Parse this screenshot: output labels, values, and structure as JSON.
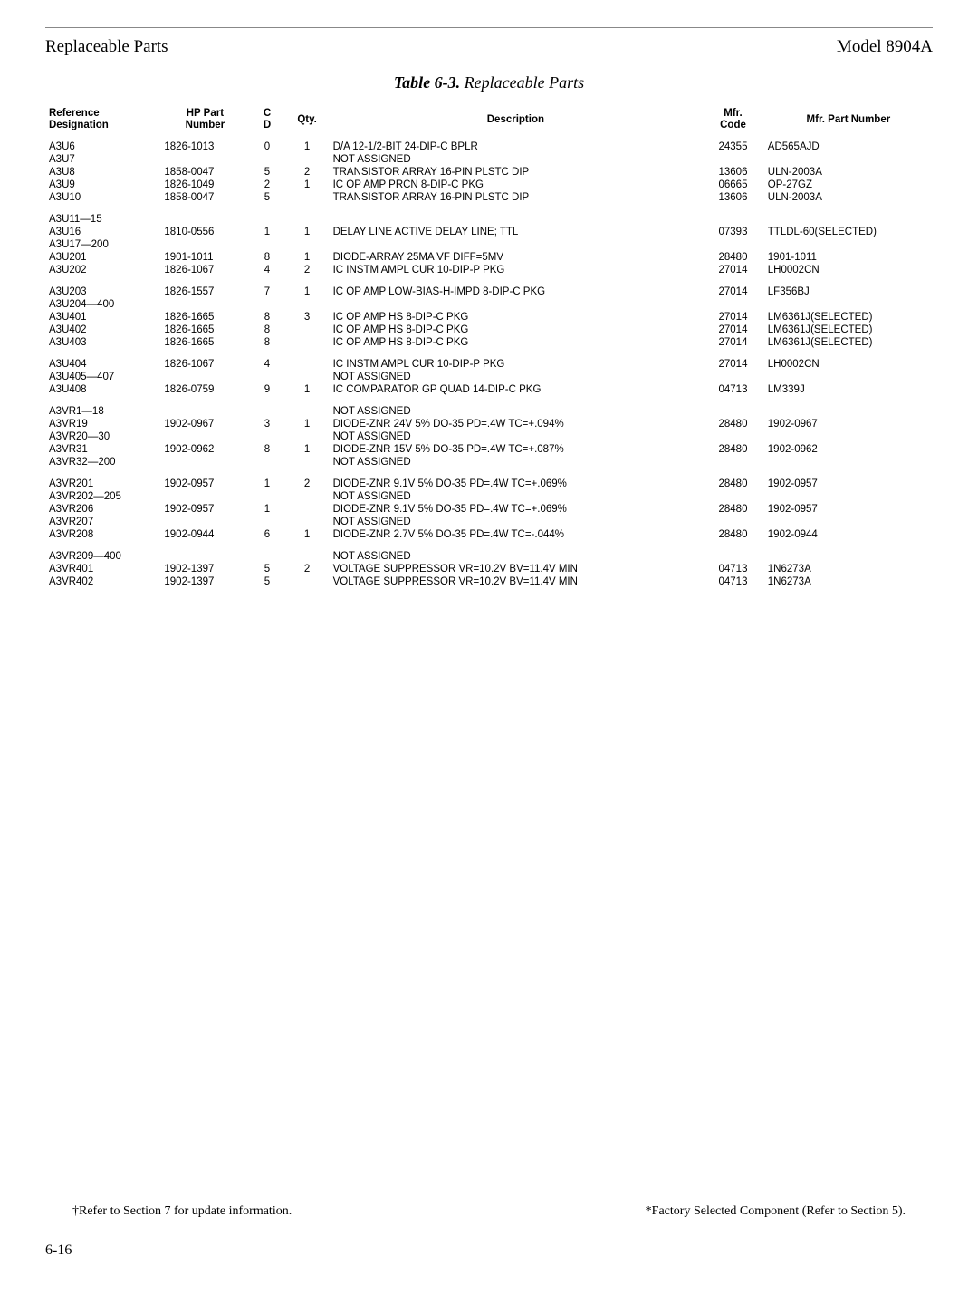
{
  "header": {
    "left": "Replaceable Parts",
    "right": "Model 8904A"
  },
  "caption": {
    "bold": "Table 6-3.",
    "rest": " Replaceable Parts"
  },
  "columns": [
    {
      "key": "ref",
      "label": "Reference\nDesignation",
      "class": "col-ref",
      "hclass": "th-multi",
      "align": "left"
    },
    {
      "key": "hp",
      "label": "HP Part\nNumber",
      "class": "col-hp",
      "hclass": "center th-multi",
      "align": "left"
    },
    {
      "key": "cd",
      "label": "C\nD",
      "class": "col-cd",
      "hclass": "center th-multi",
      "align": "center"
    },
    {
      "key": "qty",
      "label": "Qty.",
      "class": "col-qty",
      "hclass": "center",
      "align": "center"
    },
    {
      "key": "desc",
      "label": "Description",
      "class": "col-desc",
      "hclass": "center",
      "align": "left"
    },
    {
      "key": "mcode",
      "label": "Mfr.\nCode",
      "class": "col-mcode",
      "hclass": "center th-multi",
      "align": "center"
    },
    {
      "key": "mpart",
      "label": "Mfr. Part Number",
      "class": "col-mpart",
      "hclass": "center",
      "align": "left"
    }
  ],
  "groups": [
    [
      {
        "ref": "A3U6",
        "hp": "1826-1013",
        "cd": "0",
        "qty": "1",
        "desc": "D/A 12-1/2-BIT 24-DIP-C BPLR",
        "mcode": "24355",
        "mpart": "AD565AJD"
      },
      {
        "ref": "A3U7",
        "hp": "",
        "cd": "",
        "qty": "",
        "desc": "NOT ASSIGNED",
        "mcode": "",
        "mpart": ""
      },
      {
        "ref": "A3U8",
        "hp": "1858-0047",
        "cd": "5",
        "qty": "2",
        "desc": "TRANSISTOR ARRAY 16-PIN PLSTC DIP",
        "mcode": "13606",
        "mpart": "ULN-2003A"
      },
      {
        "ref": "A3U9",
        "hp": "1826-1049",
        "cd": "2",
        "qty": "1",
        "desc": "IC OP AMP PRCN 8-DIP-C PKG",
        "mcode": "06665",
        "mpart": "OP-27GZ"
      },
      {
        "ref": "A3U10",
        "hp": "1858-0047",
        "cd": "5",
        "qty": "",
        "desc": "TRANSISTOR ARRAY 16-PIN PLSTC DIP",
        "mcode": "13606",
        "mpart": "ULN-2003A"
      }
    ],
    [
      {
        "ref": "A3U11—15",
        "hp": "",
        "cd": "",
        "qty": "",
        "desc": "",
        "mcode": "",
        "mpart": ""
      },
      {
        "ref": "A3U16",
        "hp": "1810-0556",
        "cd": "1",
        "qty": "1",
        "desc": "DELAY LINE ACTIVE DELAY LINE; TTL",
        "mcode": "07393",
        "mpart": "TTLDL-60(SELECTED)"
      },
      {
        "ref": "A3U17—200",
        "hp": "",
        "cd": "",
        "qty": "",
        "desc": "",
        "mcode": "",
        "mpart": ""
      },
      {
        "ref": "A3U201",
        "hp": "1901-1011",
        "cd": "8",
        "qty": "1",
        "desc": "DIODE-ARRAY 25MA VF DIFF=5MV",
        "mcode": "28480",
        "mpart": "1901-1011"
      },
      {
        "ref": "A3U202",
        "hp": "1826-1067",
        "cd": "4",
        "qty": "2",
        "desc": "IC INSTM AMPL CUR 10-DIP-P PKG",
        "mcode": "27014",
        "mpart": "LH0002CN"
      }
    ],
    [
      {
        "ref": "A3U203",
        "hp": "1826-1557",
        "cd": "7",
        "qty": "1",
        "desc": "IC OP AMP LOW-BIAS-H-IMPD 8-DIP-C PKG",
        "mcode": "27014",
        "mpart": "LF356BJ"
      },
      {
        "ref": "A3U204—400",
        "hp": "",
        "cd": "",
        "qty": "",
        "desc": "",
        "mcode": "",
        "mpart": ""
      },
      {
        "ref": "A3U401",
        "hp": "1826-1665",
        "cd": "8",
        "qty": "3",
        "desc": "IC OP AMP HS 8-DIP-C PKG",
        "mcode": "27014",
        "mpart": "LM6361J(SELECTED)"
      },
      {
        "ref": "A3U402",
        "hp": "1826-1665",
        "cd": "8",
        "qty": "",
        "desc": "IC OP AMP HS 8-DIP-C PKG",
        "mcode": "27014",
        "mpart": "LM6361J(SELECTED)"
      },
      {
        "ref": "A3U403",
        "hp": "1826-1665",
        "cd": "8",
        "qty": "",
        "desc": "IC OP AMP HS 8-DIP-C PKG",
        "mcode": "27014",
        "mpart": "LM6361J(SELECTED)"
      }
    ],
    [
      {
        "ref": "A3U404",
        "hp": "1826-1067",
        "cd": "4",
        "qty": "",
        "desc": "IC INSTM AMPL CUR 10-DIP-P PKG",
        "mcode": "27014",
        "mpart": "LH0002CN"
      },
      {
        "ref": "A3U405—407",
        "hp": "",
        "cd": "",
        "qty": "",
        "desc": "NOT ASSIGNED",
        "mcode": "",
        "mpart": ""
      },
      {
        "ref": "A3U408",
        "hp": "1826-0759",
        "cd": "9",
        "qty": "1",
        "desc": "IC COMPARATOR GP QUAD 14-DIP-C PKG",
        "mcode": "04713",
        "mpart": "LM339J"
      }
    ],
    [
      {
        "ref": "A3VR1—18",
        "hp": "",
        "cd": "",
        "qty": "",
        "desc": "NOT ASSIGNED",
        "mcode": "",
        "mpart": ""
      },
      {
        "ref": "A3VR19",
        "hp": "1902-0967",
        "cd": "3",
        "qty": "1",
        "desc": "DIODE-ZNR 24V 5% DO-35 PD=.4W TC=+.094%",
        "mcode": "28480",
        "mpart": "1902-0967"
      },
      {
        "ref": "A3VR20—30",
        "hp": "",
        "cd": "",
        "qty": "",
        "desc": "NOT ASSIGNED",
        "mcode": "",
        "mpart": ""
      },
      {
        "ref": "A3VR31",
        "hp": "1902-0962",
        "cd": "8",
        "qty": "1",
        "desc": "DIODE-ZNR 15V 5% DO-35 PD=.4W TC=+.087%",
        "mcode": "28480",
        "mpart": "1902-0962"
      },
      {
        "ref": "A3VR32—200",
        "hp": "",
        "cd": "",
        "qty": "",
        "desc": "NOT ASSIGNED",
        "mcode": "",
        "mpart": ""
      }
    ],
    [
      {
        "ref": "A3VR201",
        "hp": "1902-0957",
        "cd": "1",
        "qty": "2",
        "desc": "DIODE-ZNR 9.1V 5% DO-35 PD=.4W TC=+.069%",
        "mcode": "28480",
        "mpart": "1902-0957"
      },
      {
        "ref": "A3VR202—205",
        "hp": "",
        "cd": "",
        "qty": "",
        "desc": "NOT ASSIGNED",
        "mcode": "",
        "mpart": ""
      },
      {
        "ref": "A3VR206",
        "hp": "1902-0957",
        "cd": "1",
        "qty": "",
        "desc": "DIODE-ZNR 9.1V 5% DO-35 PD=.4W TC=+.069%",
        "mcode": "28480",
        "mpart": "1902-0957"
      },
      {
        "ref": "A3VR207",
        "hp": "",
        "cd": "",
        "qty": "",
        "desc": "NOT ASSIGNED",
        "mcode": "",
        "mpart": ""
      },
      {
        "ref": "A3VR208",
        "hp": "1902-0944",
        "cd": "6",
        "qty": "1",
        "desc": "DIODE-ZNR 2.7V 5% DO-35 PD=.4W TC=-.044%",
        "mcode": "28480",
        "mpart": "1902-0944"
      }
    ],
    [
      {
        "ref": "A3VR209—400",
        "hp": "",
        "cd": "",
        "qty": "",
        "desc": "NOT ASSIGNED",
        "mcode": "",
        "mpart": ""
      },
      {
        "ref": "A3VR401",
        "hp": "1902-1397",
        "cd": "5",
        "qty": "2",
        "desc": "VOLTAGE SUPPRESSOR VR=10.2V BV=11.4V MIN",
        "mcode": "04713",
        "mpart": "1N6273A"
      },
      {
        "ref": "A3VR402",
        "hp": "1902-1397",
        "cd": "5",
        "qty": "",
        "desc": "VOLTAGE SUPPRESSOR VR=10.2V BV=11.4V MIN",
        "mcode": "04713",
        "mpart": "1N6273A"
      }
    ]
  ],
  "footer": {
    "left": "†Refer to Section 7 for update information.",
    "right": "*Factory Selected Component (Refer to Section 5).",
    "page": "6-16"
  }
}
